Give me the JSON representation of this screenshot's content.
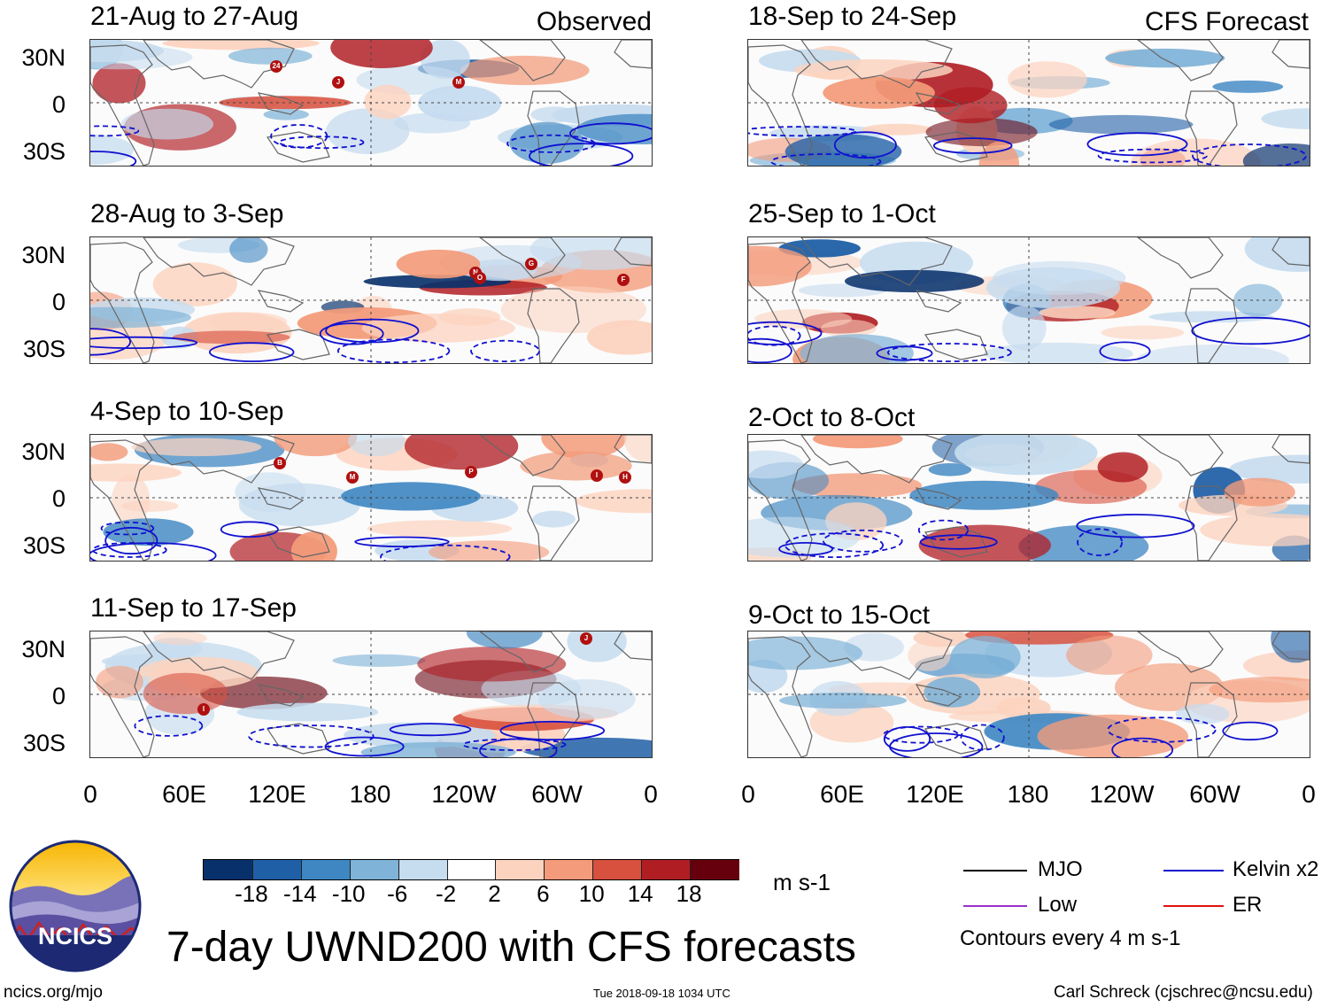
{
  "header": {
    "observed_label": "Observed",
    "forecast_label": "CFS Forecast"
  },
  "latitude_labels": [
    "30N",
    "0",
    "30S"
  ],
  "longitude_labels": [
    "0",
    "60E",
    "120E",
    "180",
    "120W",
    "60W",
    "0"
  ],
  "observed_panels": [
    {
      "period": "21-Aug to 27-Aug",
      "storms": [
        "24",
        "J",
        "M"
      ]
    },
    {
      "period": "28-Aug to 3-Sep",
      "storms": [
        "N",
        "O",
        "G",
        "F"
      ]
    },
    {
      "period": "4-Sep to 10-Sep",
      "storms": [
        "B",
        "M",
        "P",
        "I",
        "H"
      ]
    },
    {
      "period": "11-Sep to 17-Sep",
      "storms": [
        "J",
        "I"
      ]
    }
  ],
  "forecast_panels": [
    {
      "period": "18-Sep to 24-Sep"
    },
    {
      "period": "25-Sep to 1-Oct"
    },
    {
      "period": "2-Oct to 8-Oct"
    },
    {
      "period": "9-Oct to 15-Oct"
    }
  ],
  "colorbar": {
    "ticks": [
      "-18",
      "-14",
      "-10",
      "-6",
      "-2",
      "2",
      "6",
      "10",
      "14",
      "18"
    ],
    "colors": [
      "#08306b",
      "#1f5fa6",
      "#3f87c2",
      "#7fb3d8",
      "#c6dcef",
      "#ffffff",
      "#fcd3bf",
      "#f39b7a",
      "#d8503e",
      "#b01e24",
      "#67000d"
    ],
    "units": "m s-1"
  },
  "legend": {
    "mjo": "MJO",
    "kelvin": "Kelvin x2",
    "low": "Low",
    "er": "ER",
    "contours_note": "Contours every 4 m s-1",
    "colors": {
      "mjo": "#000000",
      "kelvin": "#1010d0",
      "low": "#9b30c8",
      "er": "#e01010"
    }
  },
  "footer": {
    "logo_text": "NCICS",
    "title": "7-day UWND200 with CFS forecasts",
    "url": "ncics.org/mjo",
    "timestamp": "Tue 2018-09-18 1034 UTC",
    "credit": "Carl Schreck (cjschrec@ncsu.edu)"
  }
}
